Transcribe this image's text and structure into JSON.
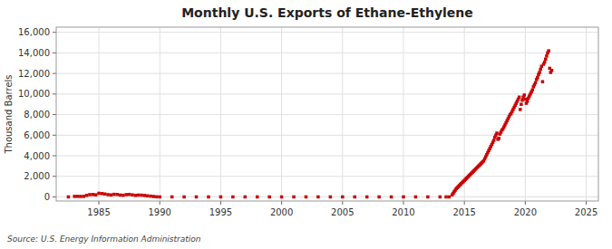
{
  "chart_data": {
    "type": "scatter",
    "title": "Monthly U.S. Exports of Ethane-Ethylene",
    "ylabel": "Thousand Barrels",
    "annotations": [
      "Source: U.S. Energy Information Administration"
    ],
    "color": "#cc0000",
    "marker": "square",
    "grid": true,
    "xlim": [
      1981.5,
      2026
    ],
    "ylim": [
      -400,
      16500
    ],
    "xticks": [
      1985,
      1990,
      1995,
      2000,
      2005,
      2010,
      2015,
      2020,
      2025
    ],
    "yticks": [
      0,
      {
        "value": 2000,
        "label": "2,000"
      },
      {
        "value": 4000,
        "label": "4,000"
      },
      {
        "value": 6000,
        "label": "6,000"
      },
      {
        "value": 8000,
        "label": "8,000"
      },
      {
        "value": 10000,
        "label": "10,000"
      },
      {
        "value": 12000,
        "label": "12,000"
      },
      {
        "value": 14000,
        "label": "14,000"
      },
      {
        "value": 16000,
        "label": "16,000"
      }
    ],
    "x": [
      1982.5,
      1983.0,
      1983.25,
      1983.5,
      1983.75,
      1984.0,
      1984.25,
      1984.5,
      1984.75,
      1985.0,
      1985.25,
      1985.5,
      1985.75,
      1986.0,
      1986.25,
      1986.5,
      1986.75,
      1987.0,
      1987.25,
      1987.5,
      1987.75,
      1988.0,
      1988.25,
      1988.5,
      1988.75,
      1989.0,
      1989.25,
      1989.5,
      1989.75,
      1990.0,
      1991.0,
      1992.0,
      1993.0,
      1994.0,
      1995.0,
      1996.0,
      1997.0,
      1998.0,
      1999.0,
      2000.0,
      2001.0,
      2002.0,
      2003.0,
      2004.0,
      2005.0,
      2006.0,
      2007.0,
      2008.0,
      2009.0,
      2010.0,
      2011.0,
      2012.0,
      2013.0,
      2013.5,
      2013.75,
      2014.0,
      2014.083,
      2014.167,
      2014.25,
      2014.333,
      2014.417,
      2014.5,
      2014.583,
      2014.667,
      2014.75,
      2014.833,
      2014.917,
      2015.0,
      2015.083,
      2015.167,
      2015.25,
      2015.333,
      2015.417,
      2015.5,
      2015.583,
      2015.667,
      2015.75,
      2015.833,
      2015.917,
      2016.0,
      2016.083,
      2016.167,
      2016.25,
      2016.333,
      2016.417,
      2016.5,
      2016.583,
      2016.667,
      2016.75,
      2016.833,
      2016.917,
      2017.0,
      2017.083,
      2017.167,
      2017.25,
      2017.333,
      2017.417,
      2017.5,
      2017.583,
      2017.667,
      2017.75,
      2017.833,
      2017.917,
      2018.0,
      2018.083,
      2018.167,
      2018.25,
      2018.333,
      2018.417,
      2018.5,
      2018.583,
      2018.667,
      2018.75,
      2018.833,
      2018.917,
      2019.0,
      2019.083,
      2019.167,
      2019.25,
      2019.333,
      2019.417,
      2019.5,
      2019.583,
      2019.667,
      2019.75,
      2019.833,
      2019.917,
      2020.0,
      2020.083,
      2020.167,
      2020.25,
      2020.333,
      2020.417,
      2020.5,
      2020.583,
      2020.667,
      2020.75,
      2020.833,
      2020.917,
      2021.0,
      2021.083,
      2021.167,
      2021.25,
      2021.333,
      2021.417,
      2021.5,
      2021.583,
      2021.667,
      2021.75,
      2021.833,
      2021.917,
      2022.0,
      2022.083,
      2022.167
    ],
    "values": [
      0,
      50,
      55,
      45,
      52,
      150,
      220,
      230,
      200,
      350,
      320,
      280,
      220,
      190,
      250,
      240,
      180,
      160,
      220,
      240,
      200,
      150,
      180,
      170,
      140,
      100,
      70,
      40,
      10,
      0,
      0,
      0,
      0,
      0,
      0,
      0,
      0,
      0,
      0,
      0,
      0,
      0,
      0,
      0,
      0,
      0,
      0,
      0,
      0,
      0,
      0,
      0,
      0,
      0,
      0,
      200,
      350,
      500,
      650,
      800,
      900,
      1000,
      1100,
      1200,
      1300,
      1400,
      1500,
      1600,
      1700,
      1800,
      1900,
      2000,
      2100,
      2200,
      2300,
      2400,
      2500,
      2600,
      2700,
      2800,
      2900,
      3000,
      3100,
      3200,
      3300,
      3400,
      3500,
      3700,
      3900,
      4100,
      4300,
      4500,
      4700,
      4900,
      5100,
      5300,
      5500,
      5800,
      6000,
      6200,
      5600,
      5700,
      6100,
      6300,
      6500,
      6600,
      6800,
      7000,
      7200,
      7400,
      7600,
      7800,
      8000,
      8100,
      8300,
      8500,
      8700,
      8900,
      9100,
      9300,
      9500,
      9700,
      8500,
      9000,
      9400,
      9700,
      9900,
      9500,
      9100,
      9300,
      9600,
      9800,
      10000,
      10200,
      10400,
      10700,
      10900,
      11100,
      11400,
      11600,
      11900,
      12100,
      12400,
      12700,
      11200,
      12900,
      13100,
      13400,
      13700,
      14000,
      14200,
      12500,
      12100,
      12300
    ]
  }
}
